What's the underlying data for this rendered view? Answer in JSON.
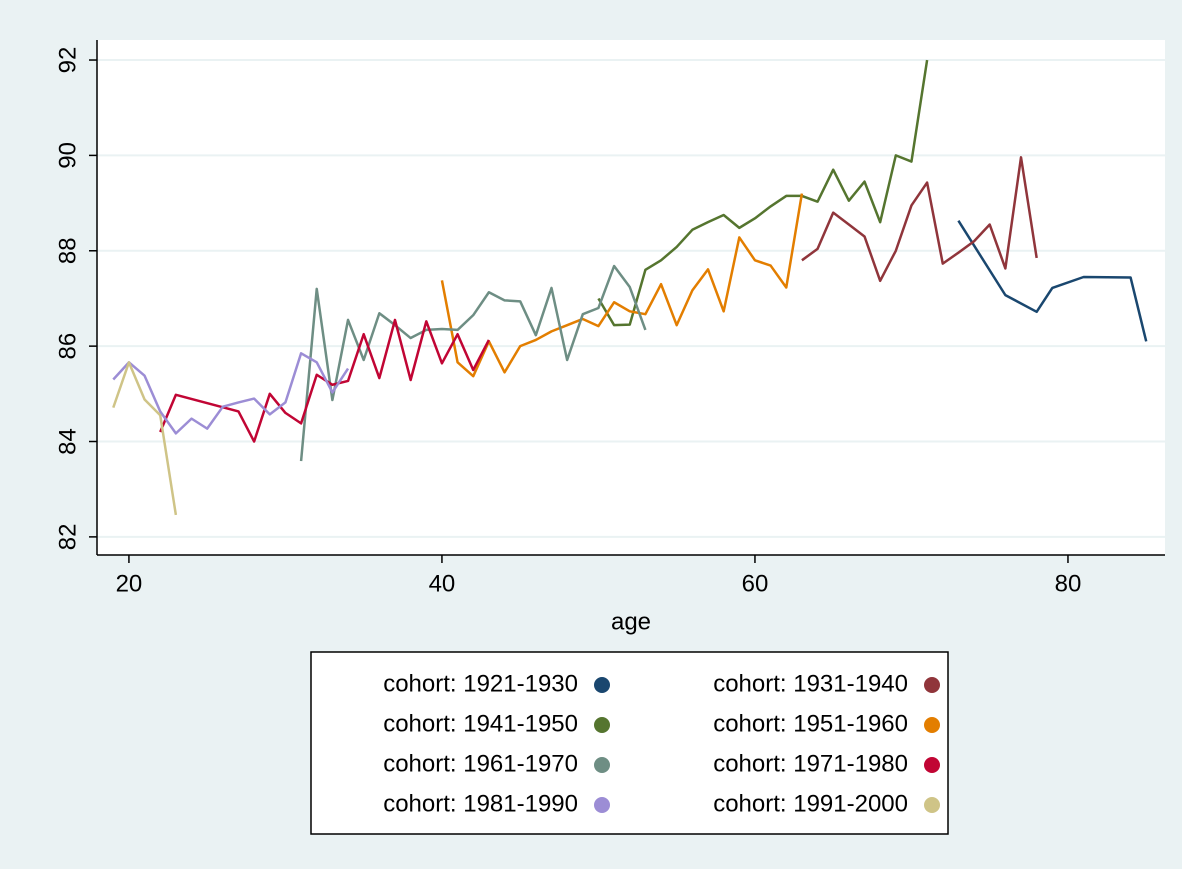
{
  "chart_data": {
    "type": "line",
    "x_label": "age",
    "xlim": [
      17.96,
      86.2
    ],
    "ylim": [
      81.62,
      92.42
    ],
    "xticks": [
      20,
      40,
      60,
      80
    ],
    "yticks": [
      82,
      84,
      86,
      88,
      90,
      92
    ],
    "grid": true,
    "legend": "bottom",
    "series": [
      {
        "name": "cohort: 1921-1930",
        "color": "#1a476f",
        "x": [
          73,
          76,
          78,
          79,
          81,
          84,
          85
        ],
        "values": [
          88.63,
          87.07,
          86.72,
          87.22,
          87.45,
          87.44,
          86.1
        ]
      },
      {
        "name": "cohort: 1931-1940",
        "color": "#90353b",
        "x": [
          63,
          64,
          65,
          66,
          67,
          68,
          69,
          70,
          71,
          72,
          73,
          74,
          75,
          76,
          77,
          78
        ],
        "values": [
          87.8,
          88.04,
          88.8,
          88.55,
          88.3,
          87.37,
          88.0,
          88.95,
          89.43,
          87.73,
          87.96,
          88.2,
          88.55,
          87.63,
          89.96,
          87.85
        ]
      },
      {
        "name": "cohort: 1941-1950",
        "color": "#55752f",
        "x": [
          50,
          51,
          52,
          53,
          54,
          55,
          56,
          57,
          58,
          59,
          60,
          61,
          62,
          63,
          64,
          65,
          66,
          67,
          68,
          69,
          70,
          71
        ],
        "values": [
          87.0,
          86.44,
          86.45,
          87.6,
          87.8,
          88.08,
          88.44,
          88.6,
          88.75,
          88.48,
          88.68,
          88.93,
          89.15,
          89.15,
          89.03,
          89.7,
          89.05,
          89.45,
          88.6,
          90.0,
          89.87,
          92.0
        ]
      },
      {
        "name": "cohort: 1951-1960",
        "color": "#e37e00",
        "x": [
          40,
          41,
          42,
          43,
          44,
          45,
          46,
          47,
          48,
          49,
          50,
          51,
          52,
          53,
          54,
          55,
          56,
          57,
          58,
          59,
          60,
          61,
          62,
          63
        ],
        "values": [
          87.38,
          85.66,
          85.37,
          86.1,
          85.45,
          86.0,
          86.13,
          86.31,
          86.44,
          86.57,
          86.42,
          86.92,
          86.73,
          86.67,
          87.3,
          86.44,
          87.17,
          87.61,
          86.73,
          88.28,
          87.8,
          87.69,
          87.23,
          89.2
        ]
      },
      {
        "name": "cohort: 1961-1970",
        "color": "#6e8e84",
        "x": [
          31,
          32,
          33,
          34,
          35,
          36,
          37,
          38,
          39,
          40,
          41,
          42,
          43,
          44,
          45,
          46,
          47,
          48,
          49,
          50,
          51,
          52,
          53
        ],
        "values": [
          83.59,
          87.2,
          84.87,
          86.55,
          85.71,
          86.69,
          86.44,
          86.17,
          86.34,
          86.36,
          86.34,
          86.65,
          87.13,
          86.96,
          86.94,
          86.23,
          87.22,
          85.71,
          86.67,
          86.8,
          87.68,
          87.24,
          86.34
        ]
      },
      {
        "name": "cohort: 1971-1980",
        "color": "#c10534",
        "x": [
          22,
          23,
          27,
          28,
          29,
          30,
          31,
          32,
          33,
          34,
          35,
          36,
          37,
          38,
          39,
          40,
          41,
          42,
          43
        ],
        "values": [
          84.2,
          84.98,
          84.63,
          84.0,
          85.0,
          84.6,
          84.38,
          85.4,
          85.19,
          85.27,
          86.25,
          85.33,
          86.55,
          85.29,
          86.52,
          85.64,
          86.25,
          85.5,
          86.13
        ]
      },
      {
        "name": "cohort: 1981-1990",
        "color": "#9c8dd5",
        "x": [
          19,
          20,
          21,
          22,
          23,
          24,
          25,
          26,
          27,
          28,
          29,
          30,
          31,
          32,
          33,
          34
        ],
        "values": [
          85.3,
          85.66,
          85.38,
          84.63,
          84.17,
          84.48,
          84.27,
          84.73,
          84.82,
          84.9,
          84.57,
          84.82,
          85.85,
          85.66,
          85.03,
          85.53
        ]
      },
      {
        "name": "cohort: 1991-2000",
        "color": "#cfc487",
        "x": [
          19,
          20,
          21,
          22,
          23
        ],
        "values": [
          84.71,
          85.66,
          84.88,
          84.55,
          82.46
        ]
      }
    ]
  }
}
